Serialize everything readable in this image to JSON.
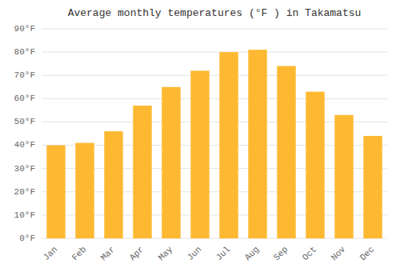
{
  "chart_data": {
    "type": "bar",
    "title": "Average monthly temperatures (°F ) in Takamatsu",
    "categories": [
      "Jan",
      "Feb",
      "Mar",
      "Apr",
      "May",
      "Jun",
      "Jul",
      "Aug",
      "Sep",
      "Oct",
      "Nov",
      "Dec"
    ],
    "values": [
      40,
      41,
      46,
      57,
      65,
      72,
      80,
      81,
      74,
      63,
      53,
      44
    ],
    "color": "#FDB931",
    "ylim": [
      0,
      90
    ],
    "yticks": [
      {
        "value": 0,
        "label": "0°F"
      },
      {
        "value": 10,
        "label": "10°F"
      },
      {
        "value": 20,
        "label": "20°F"
      },
      {
        "value": 30,
        "label": "30°F"
      },
      {
        "value": 40,
        "label": "40°F"
      },
      {
        "value": 50,
        "label": "50°F"
      },
      {
        "value": 60,
        "label": "60°F"
      },
      {
        "value": 70,
        "label": "70°F"
      },
      {
        "value": 80,
        "label": "80°F"
      },
      {
        "value": 90,
        "label": "90°F"
      }
    ],
    "grid": true
  }
}
